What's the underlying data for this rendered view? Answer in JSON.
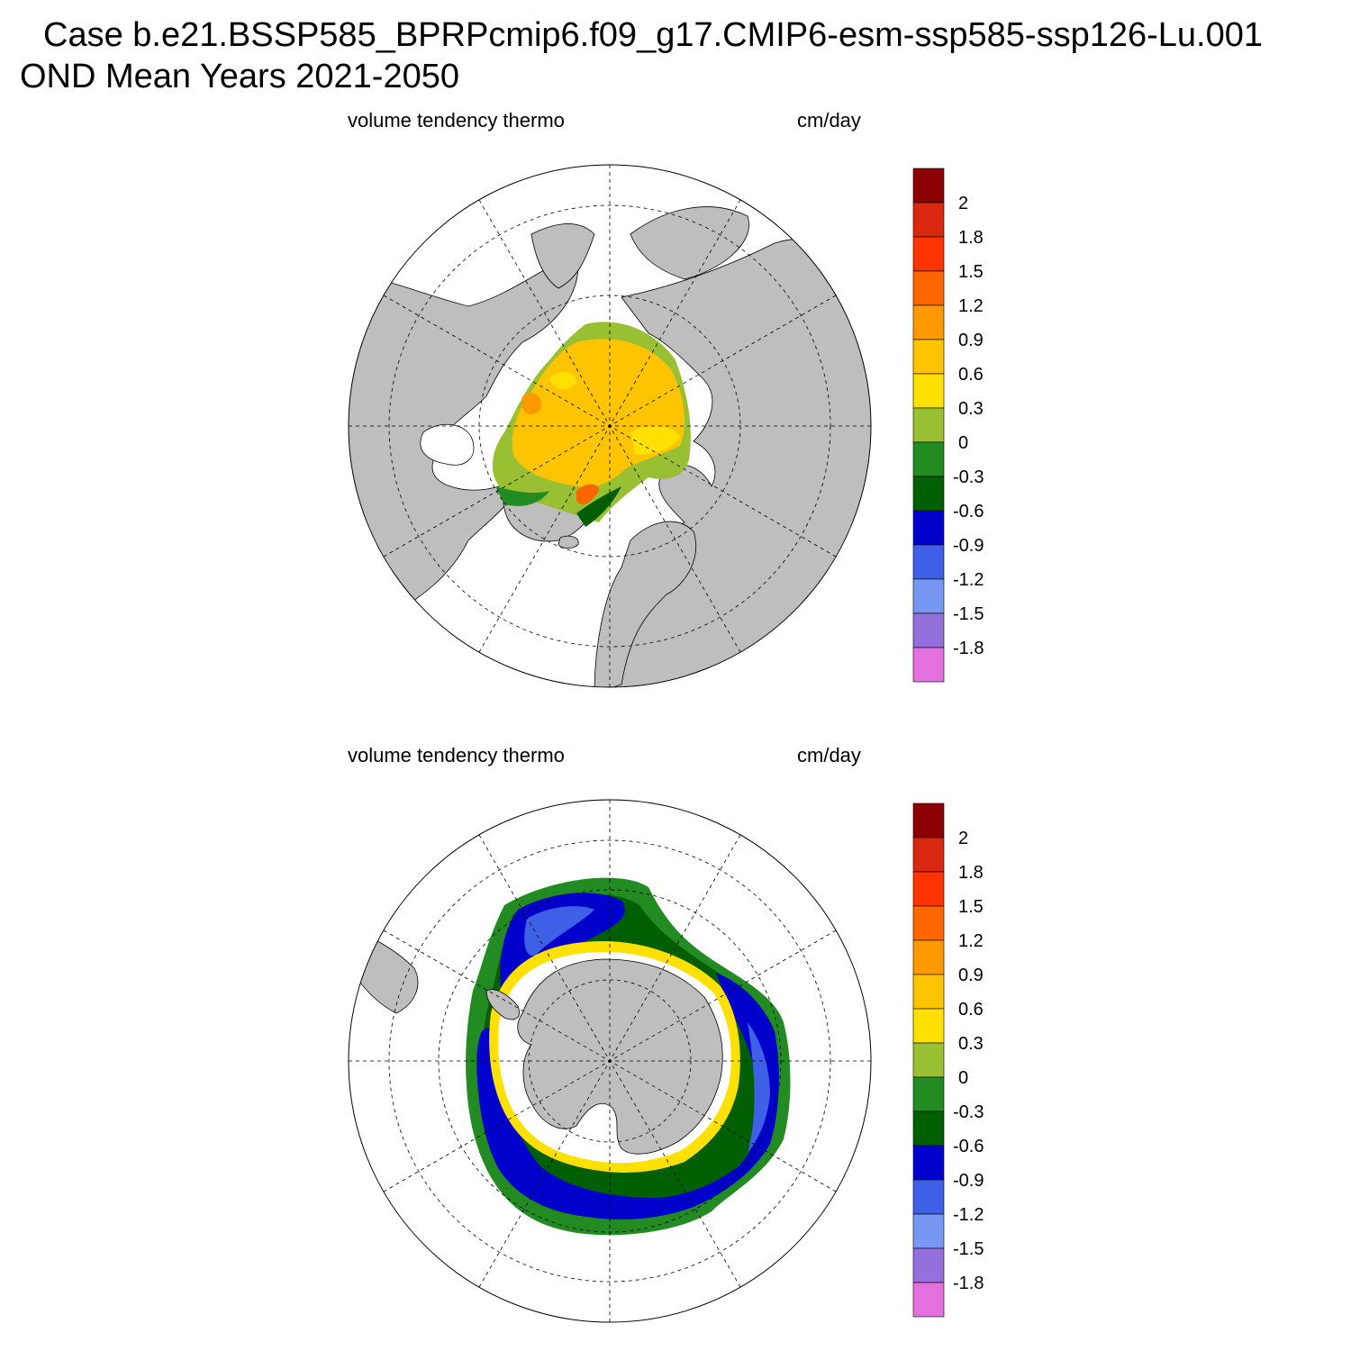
{
  "title": {
    "case_line": "Case b.e21.BSSP585_BPRPcmip6.f09_g17.CMIP6-esm-ssp585-ssp126-Lu.001",
    "period_line": "OND Mean   Years 2021-2050"
  },
  "panels": [
    {
      "hemisphere": "north",
      "left_label": "volume tendency thermo",
      "right_label": "cm/day"
    },
    {
      "hemisphere": "south",
      "left_label": "volume tendency thermo",
      "right_label": "cm/day"
    }
  ],
  "colorbar": {
    "colors": [
      "#8b0000",
      "#d9280f",
      "#ff3300",
      "#ff6600",
      "#ff9900",
      "#ffc400",
      "#ffe000",
      "#99bf33",
      "#228b22",
      "#005f00",
      "#0000cd",
      "#3d60e6",
      "#7797f2",
      "#9370db",
      "#e46fdf"
    ],
    "labels": [
      "2",
      "1.8",
      "1.5",
      "1.2",
      "0.9",
      "0.6",
      "0.3",
      "0",
      "-0.3",
      "-0.6",
      "-0.9",
      "-1.2",
      "-1.5",
      "-1.8"
    ]
  },
  "colors": {
    "land": "#bebebe",
    "ocean": "#ffffff"
  }
}
